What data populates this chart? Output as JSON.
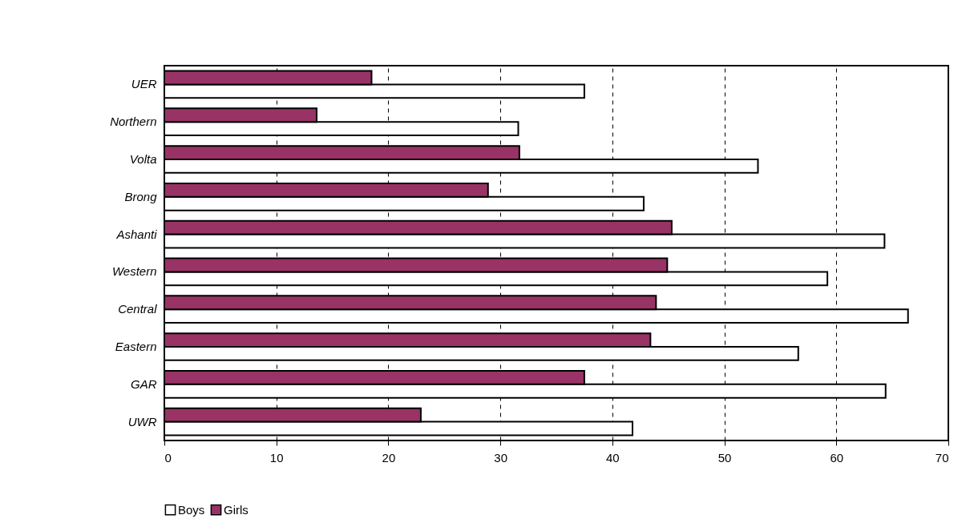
{
  "chart_data": {
    "type": "bar",
    "orientation": "horizontal",
    "categories": [
      "UER",
      "Northern",
      "Volta",
      "Brong",
      "Ashanti",
      "Western",
      "Central",
      "Eastern",
      "GAR",
      "UWR"
    ],
    "series": [
      {
        "name": "Boys",
        "color": "#ffffff",
        "values": [
          37.5,
          31.6,
          53.0,
          42.8,
          64.3,
          59.2,
          66.4,
          56.6,
          64.4,
          41.8
        ]
      },
      {
        "name": "Girls",
        "color": "#993366",
        "values": [
          18.5,
          13.6,
          31.7,
          28.9,
          45.3,
          44.9,
          43.9,
          43.4,
          37.5,
          22.9
        ]
      }
    ],
    "xlim": [
      0,
      70
    ],
    "xticks": [
      0,
      10,
      20,
      30,
      40,
      50,
      60,
      70
    ],
    "grid": "x",
    "legend": "bottom"
  }
}
